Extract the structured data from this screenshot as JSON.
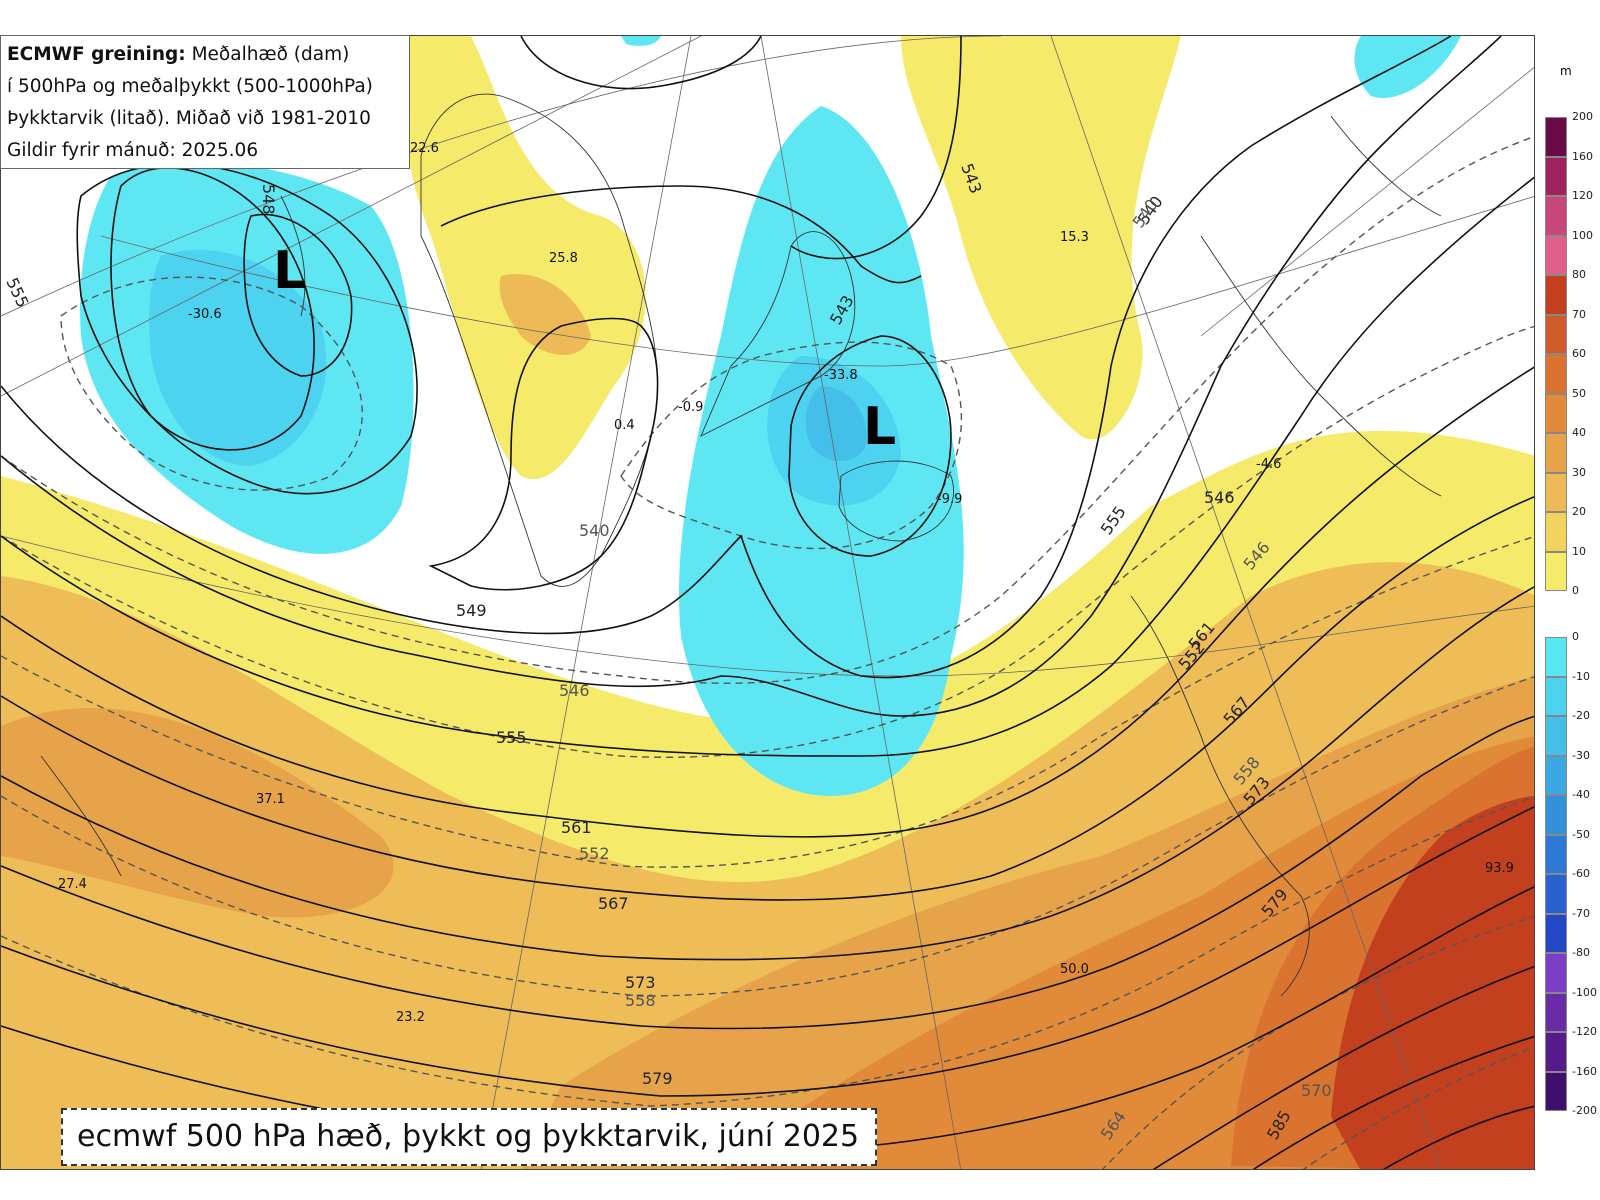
{
  "title_box": {
    "line1_bold": "ECMWF greining:",
    "line1_rest": " Meðalhæð (dam)",
    "line2": "í 500hPa og meðalþykkt (500-1000hPa)",
    "line3": "Þykktarvik (litað). Miðað við 1981-2010",
    "line4": "Gildir fyrir mánuð: 2025.06"
  },
  "caption": "ecmwf 500 hPa hæð, þykkt og þykktarvik, júní 2025",
  "legend": {
    "unit": "m",
    "positive": {
      "labels": [
        "200",
        "160",
        "120",
        "100",
        "80",
        "70",
        "60",
        "50",
        "40",
        "30",
        "20",
        "10",
        "0"
      ],
      "colors": [
        "#6a0b47",
        "#a0225f",
        "#c9467a",
        "#e05f8c",
        "#c2401e",
        "#cf5a2a",
        "#d9732f",
        "#e08a3a",
        "#e6a34a",
        "#eeba57",
        "#f3d35f",
        "#f6ea6a",
        "#ffffff"
      ]
    },
    "negative": {
      "labels": [
        "0",
        "-10",
        "-20",
        "-30",
        "-40",
        "-50",
        "-60",
        "-70",
        "-80",
        "-100",
        "-120",
        "-160",
        "-200"
      ],
      "colors": [
        "#ffffff",
        "#58e6f2",
        "#4dd3f0",
        "#44bfe9",
        "#3ca8e3",
        "#3590dc",
        "#2e78d6",
        "#2860cf",
        "#2448c4",
        "#7a3fc4",
        "#6a2ba6",
        "#551b8a",
        "#3f0f6e"
      ]
    }
  },
  "lows": [
    {
      "label": "L"
    },
    {
      "label": "L"
    }
  ],
  "height_labels": [
    "549",
    "555",
    "561",
    "567",
    "573",
    "579",
    "585",
    "543",
    "540",
    "546",
    "552",
    "555",
    "561",
    "567",
    "573",
    "579"
  ],
  "thickness_labels": [
    "540",
    "546",
    "552",
    "558",
    "564",
    "570",
    "558",
    "546",
    "540"
  ],
  "anomaly_values": [
    "-30.6",
    "25.8",
    "22.6",
    "0.4",
    "-0.9",
    "-33.8",
    "-9.9",
    "15.3",
    "-4.6",
    "37.1",
    "27.4",
    "23.2",
    "50.0",
    "93.9"
  ],
  "contour_marks": [
    "555",
    "543",
    "548",
    "543"
  ]
}
